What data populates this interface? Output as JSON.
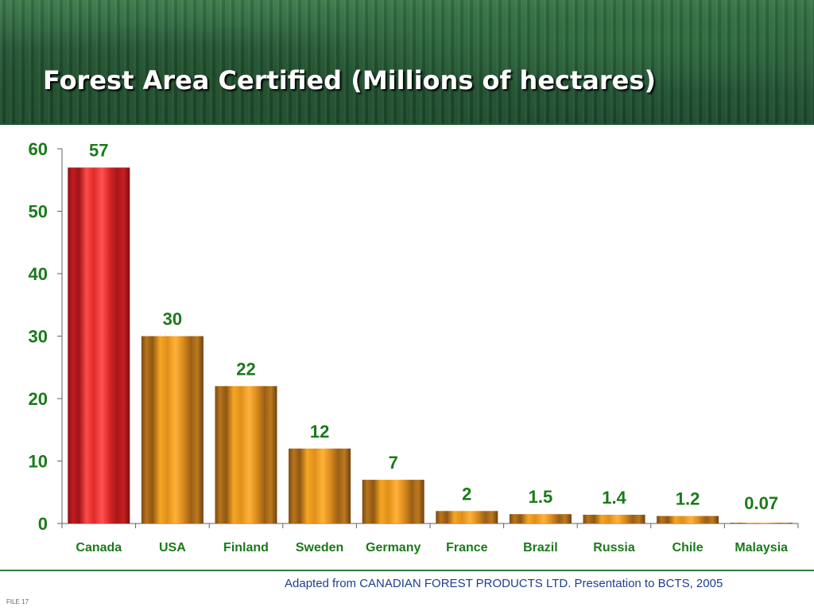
{
  "slide": {
    "title": "Forest Area Certified (Millions of hectares)",
    "source_note": "Adapted from CANADIAN FOREST PRODUCTS LTD. Presentation to BCTS, 2005",
    "file_label": "FILE 17"
  },
  "colors": {
    "header_green": "#2a5e36",
    "label_green": "#1a7a1a",
    "highlight_bar": "#d8262b",
    "default_bar": "#d98a1c",
    "source_blue": "#1c3f8f"
  },
  "chart_data": {
    "type": "bar",
    "title": "Forest Area Certified (Millions of hectares)",
    "categories": [
      "Canada",
      "USA",
      "Finland",
      "Sweden",
      "Germany",
      "France",
      "Brazil",
      "Russia",
      "Chile",
      "Malaysia"
    ],
    "values": [
      57,
      30,
      22,
      12,
      7,
      2,
      1.5,
      1.4,
      1.2,
      0.07
    ],
    "data_labels": [
      "57",
      "30",
      "22",
      "12",
      "7",
      "2",
      "1.5",
      "1.4",
      "1.2",
      "0.07"
    ],
    "highlight_category": "Canada",
    "ylim": [
      0,
      60
    ],
    "yticks": [
      0,
      10,
      20,
      30,
      40,
      50,
      60
    ],
    "xlabel": "",
    "ylabel": "",
    "grid": false,
    "legend": "none"
  }
}
